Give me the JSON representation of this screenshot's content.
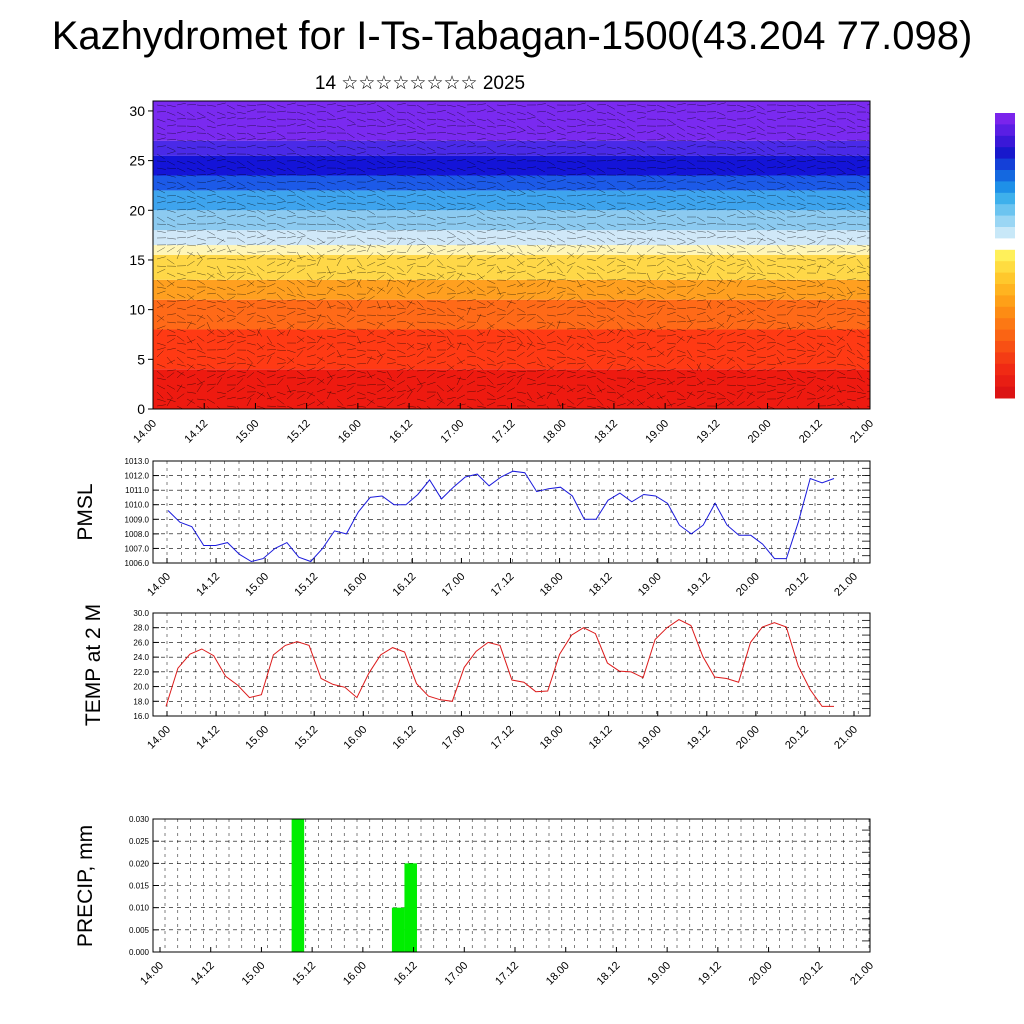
{
  "title": "Kazhydromet for I-Ts-Tabagan-1500(43.204 77.098)",
  "subtitle": "14 ☆☆☆☆☆☆☆☆ 2025",
  "colors": {
    "pmsl_line": "#1a1adc",
    "temp_line": "#dc1a1a",
    "precip_bar": "#00ee00",
    "grid": "#000000"
  },
  "chart_data": [
    {
      "type": "heatmap",
      "title": "",
      "xlabel": "",
      "ylabel": "",
      "ylim": [
        0,
        31
      ],
      "y_ticks": [
        "0",
        "5",
        "10",
        "15",
        "20",
        "25",
        "30"
      ],
      "x_ticks": [
        "14.00",
        "14.12",
        "15.00",
        "15.12",
        "16.00",
        "16.12",
        "17.00",
        "17.12",
        "18.00",
        "18.12",
        "19.00",
        "19.12",
        "20.00",
        "20.12",
        "21.00"
      ],
      "color_bands": [
        {
          "from": 0,
          "to": 4,
          "color": "#ee1a10"
        },
        {
          "from": 4,
          "to": 8,
          "color": "#ff3a14"
        },
        {
          "from": 8,
          "to": 11,
          "color": "#ff6a18"
        },
        {
          "from": 11,
          "to": 13,
          "color": "#ffa020"
        },
        {
          "from": 13,
          "to": 15.5,
          "color": "#ffd848"
        },
        {
          "from": 15.5,
          "to": 16.5,
          "color": "#fff6b8"
        },
        {
          "from": 16.5,
          "to": 18,
          "color": "#d0e8f8"
        },
        {
          "from": 18,
          "to": 20,
          "color": "#8ccaf0"
        },
        {
          "from": 20,
          "to": 22,
          "color": "#3ea4ee"
        },
        {
          "from": 22,
          "to": 23.5,
          "color": "#1c5ae8"
        },
        {
          "from": 23.5,
          "to": 25.5,
          "color": "#1414d8"
        },
        {
          "from": 25.5,
          "to": 27,
          "color": "#4a2ae8"
        },
        {
          "from": 27,
          "to": 31,
          "color": "#7a2af0"
        }
      ],
      "colorbar": [
        "#dc1414",
        "#e81e14",
        "#f02a14",
        "#f43c14",
        "#f85014",
        "#fa6414",
        "#fc7814",
        "#fd8c14",
        "#fea018",
        "#ffb420",
        "#ffc82c",
        "#ffdc40",
        "#fff05a",
        "#ffffff",
        "#c8e8f8",
        "#9ad6f4",
        "#6cc4f0",
        "#3eb0ec",
        "#1e90e8",
        "#1468e0",
        "#1440d8",
        "#1818cc",
        "#3a18d8",
        "#5a1ee4",
        "#7a24ec"
      ]
    },
    {
      "type": "line",
      "title": "",
      "xlabel": "",
      "ylabel": "PMSL",
      "ylim": [
        1006.0,
        1013.0
      ],
      "y_ticks": [
        "1006.0",
        "1007.0",
        "1008.0",
        "1009.0",
        "1010.0",
        "1011.0",
        "1012.0",
        "1013.0"
      ],
      "x_ticks": [
        "14.00",
        "14.12",
        "15.00",
        "15.12",
        "16.00",
        "16.12",
        "17.00",
        "17.12",
        "18.00",
        "18.12",
        "19.00",
        "19.12",
        "20.00",
        "20.12",
        "21.00"
      ],
      "series": [
        {
          "values": [
            1009.6,
            1008.8,
            1008.5,
            1007.2,
            1007.2,
            1007.4,
            1006.6,
            1006.1,
            1006.3,
            1007.0,
            1007.4,
            1006.4,
            1006.1,
            1007.0,
            1008.2,
            1008.0,
            1009.5,
            1010.5,
            1010.6,
            1010.0,
            1010.0,
            1010.7,
            1011.7,
            1010.4,
            1011.2,
            1011.9,
            1012.1,
            1011.3,
            1011.9,
            1012.3,
            1012.2,
            1010.9,
            1011.1,
            1011.2,
            1010.6,
            1009.0,
            1009.0,
            1010.3,
            1010.8,
            1010.2,
            1010.7,
            1010.6,
            1010.1,
            1008.6,
            1008.0,
            1008.6,
            1010.1,
            1008.6,
            1007.9,
            1007.9,
            1007.3,
            1006.3,
            1006.3,
            1008.8,
            1011.8,
            1011.5,
            1011.8
          ]
        }
      ]
    },
    {
      "type": "line",
      "title": "",
      "xlabel": "",
      "ylabel": "TEMP at 2 M",
      "ylim": [
        16.0,
        30.0
      ],
      "y_ticks": [
        "16.0",
        "18.0",
        "20.0",
        "22.0",
        "24.0",
        "26.0",
        "28.0",
        "30.0"
      ],
      "x_ticks": [
        "14.00",
        "14.12",
        "15.00",
        "15.12",
        "16.00",
        "16.12",
        "17.00",
        "17.12",
        "18.00",
        "18.12",
        "19.00",
        "19.12",
        "20.00",
        "20.12",
        "21.00"
      ],
      "series": [
        {
          "values": [
            17.3,
            22.5,
            24.4,
            25.1,
            24.2,
            21.4,
            20.2,
            18.5,
            18.9,
            24.3,
            25.6,
            26.1,
            25.6,
            21.1,
            20.3,
            19.9,
            18.5,
            21.8,
            24.3,
            25.3,
            24.7,
            20.4,
            18.7,
            18.2,
            18.0,
            22.6,
            24.8,
            26.0,
            25.6,
            20.9,
            20.6,
            19.3,
            19.4,
            24.4,
            27.0,
            28.0,
            27.2,
            23.2,
            22.1,
            22.0,
            21.2,
            26.4,
            28.0,
            29.1,
            28.3,
            24.1,
            21.3,
            21.1,
            20.6,
            26.0,
            28.1,
            28.7,
            28.1,
            22.8,
            19.6,
            17.3,
            17.3
          ]
        }
      ]
    },
    {
      "type": "bar",
      "title": "",
      "xlabel": "",
      "ylabel": "PRECIP, mm",
      "ylim": [
        0,
        0.03
      ],
      "y_ticks": [
        "0.000",
        "0.005",
        "0.010",
        "0.015",
        "0.020",
        "0.025",
        "0.030"
      ],
      "x_ticks": [
        "14.00",
        "14.12",
        "15.00",
        "15.12",
        "16.00",
        "16.12",
        "17.00",
        "17.12",
        "18.00",
        "18.12",
        "19.00",
        "19.12",
        "20.00",
        "20.12",
        "21.00"
      ],
      "series": [
        {
          "values": [
            0,
            0,
            0,
            0,
            0,
            0,
            0,
            0,
            0,
            0,
            0,
            0.03,
            0,
            0,
            0,
            0,
            0,
            0,
            0,
            0.01,
            0.02,
            0,
            0,
            0,
            0,
            0,
            0,
            0,
            0,
            0,
            0,
            0,
            0,
            0,
            0,
            0,
            0,
            0,
            0,
            0,
            0,
            0,
            0,
            0,
            0,
            0,
            0,
            0,
            0,
            0,
            0,
            0,
            0,
            0,
            0,
            0,
            0
          ]
        }
      ]
    }
  ]
}
